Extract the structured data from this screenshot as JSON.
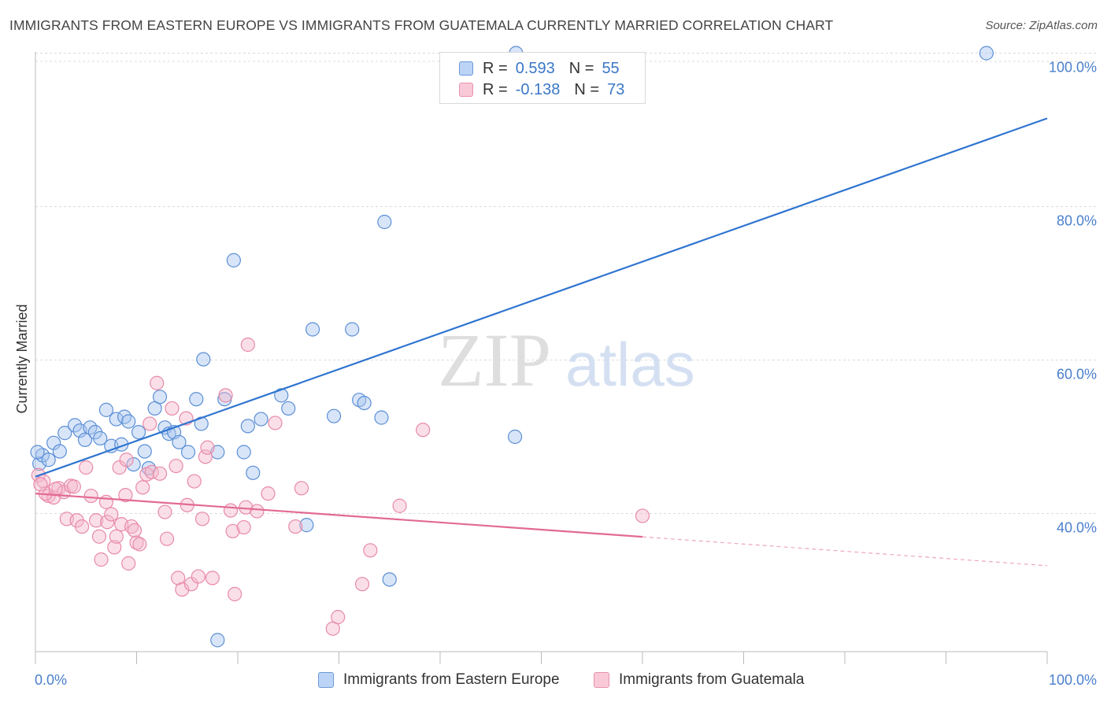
{
  "title": "IMMIGRANTS FROM EASTERN EUROPE VS IMMIGRANTS FROM GUATEMALA CURRENTLY MARRIED CORRELATION CHART",
  "source": "Source: ZipAtlas.com",
  "watermark": {
    "zip": "ZIP",
    "atlas": "atlas"
  },
  "colors": {
    "blue_fill": "#a9c6ef",
    "blue_stroke": "#5b8fd6",
    "blue_line": "#2f74d0",
    "pink_fill": "#f5b8cc",
    "pink_stroke": "#e88aa8",
    "pink_line": "#e26a93",
    "grid": "#dcdcdc",
    "axis_text": "#4a7fcc"
  },
  "legend": {
    "rows": [
      {
        "r_label": "R =",
        "r_value": "0.593",
        "n_label": "N =",
        "n_value": "55"
      },
      {
        "r_label": "R =",
        "r_value": "-0.138",
        "n_label": "N =",
        "n_value": "73"
      }
    ]
  },
  "bottom_legend": {
    "series1": "Immigrants from Eastern Europe",
    "series2": "Immigrants from Guatemala"
  },
  "chart_data": {
    "type": "scatter",
    "title": "IMMIGRANTS FROM EASTERN EUROPE VS IMMIGRANTS FROM GUATEMALA CURRENTLY MARRIED CORRELATION CHART",
    "xlabel": "",
    "ylabel": "Currently Married",
    "xlim": [
      0,
      100
    ],
    "ylim": [
      22,
      102
    ],
    "x_tick_labels": [
      "0.0%",
      "100.0%"
    ],
    "y_ticks": [
      40,
      60,
      80,
      100
    ],
    "y_tick_labels": [
      "40.0%",
      "60.0%",
      "80.0%",
      "100.0%"
    ],
    "grid": true,
    "series": [
      {
        "name": "Immigrants from Eastern Europe",
        "R": 0.593,
        "N": 55,
        "trend": {
          "x0": 0,
          "y0": 44.8,
          "x1": 100,
          "y1": 91.5,
          "solid_to": 100
        },
        "points": [
          [
            0.4,
            46.5
          ],
          [
            0.7,
            47.6
          ],
          [
            1.3,
            47.0
          ],
          [
            1.8,
            49.2
          ],
          [
            2.4,
            48.1
          ],
          [
            2.9,
            50.5
          ],
          [
            3.9,
            51.5
          ],
          [
            4.4,
            50.8
          ],
          [
            4.9,
            49.6
          ],
          [
            5.4,
            51.2
          ],
          [
            5.9,
            50.6
          ],
          [
            6.4,
            49.8
          ],
          [
            7.0,
            53.5
          ],
          [
            7.5,
            48.8
          ],
          [
            8.0,
            52.3
          ],
          [
            8.5,
            49.0
          ],
          [
            8.8,
            52.6
          ],
          [
            9.2,
            52.0
          ],
          [
            9.7,
            46.4
          ],
          [
            10.2,
            50.6
          ],
          [
            10.8,
            48.1
          ],
          [
            11.2,
            45.9
          ],
          [
            11.8,
            53.7
          ],
          [
            12.3,
            55.2
          ],
          [
            12.8,
            51.2
          ],
          [
            13.2,
            50.4
          ],
          [
            13.7,
            50.6
          ],
          [
            14.2,
            49.3
          ],
          [
            15.1,
            48.0
          ],
          [
            15.9,
            54.9
          ],
          [
            16.4,
            51.7
          ],
          [
            16.6,
            60.1
          ],
          [
            18.0,
            48.0
          ],
          [
            18.7,
            54.9
          ],
          [
            19.6,
            73.0
          ],
          [
            20.6,
            48.0
          ],
          [
            21.0,
            51.4
          ],
          [
            21.5,
            45.3
          ],
          [
            22.3,
            52.3
          ],
          [
            24.3,
            55.4
          ],
          [
            25.0,
            53.7
          ],
          [
            26.8,
            38.5
          ],
          [
            27.4,
            64.0
          ],
          [
            29.5,
            52.7
          ],
          [
            31.3,
            64.0
          ],
          [
            32.0,
            54.8
          ],
          [
            32.5,
            54.4
          ],
          [
            34.2,
            52.5
          ],
          [
            34.5,
            78.0
          ],
          [
            35.0,
            31.4
          ],
          [
            47.4,
            50.0
          ],
          [
            18.0,
            23.5
          ],
          [
            94.0,
            100.0
          ],
          [
            47.5,
            100.0
          ],
          [
            0.2,
            48.0
          ]
        ]
      },
      {
        "name": "Immigrants from Guatemala",
        "R": -0.138,
        "N": 73,
        "trend": {
          "x0": 0,
          "y0": 42.6,
          "x1": 100,
          "y1": 33.2,
          "solid_to": 60
        },
        "points": [
          [
            0.3,
            45.0
          ],
          [
            0.8,
            44.2
          ],
          [
            1.3,
            42.3
          ],
          [
            1.8,
            42.1
          ],
          [
            2.3,
            43.3
          ],
          [
            2.8,
            42.8
          ],
          [
            3.1,
            39.3
          ],
          [
            3.5,
            43.6
          ],
          [
            4.1,
            39.1
          ],
          [
            4.6,
            38.3
          ],
          [
            5.0,
            46.0
          ],
          [
            5.5,
            42.3
          ],
          [
            6.0,
            39.1
          ],
          [
            6.3,
            37.0
          ],
          [
            6.5,
            34.0
          ],
          [
            7.0,
            41.5
          ],
          [
            7.1,
            38.9
          ],
          [
            7.5,
            39.9
          ],
          [
            7.8,
            35.6
          ],
          [
            8.0,
            37.0
          ],
          [
            8.3,
            46.0
          ],
          [
            8.5,
            38.6
          ],
          [
            9.0,
            47.0
          ],
          [
            9.2,
            33.5
          ],
          [
            9.5,
            38.3
          ],
          [
            9.8,
            37.8
          ],
          [
            10.0,
            36.2
          ],
          [
            10.3,
            36.0
          ],
          [
            10.6,
            43.4
          ],
          [
            11.0,
            45.1
          ],
          [
            11.3,
            51.7
          ],
          [
            11.5,
            45.4
          ],
          [
            12.0,
            57.0
          ],
          [
            12.8,
            40.2
          ],
          [
            13.0,
            36.7
          ],
          [
            13.5,
            53.7
          ],
          [
            13.9,
            46.2
          ],
          [
            14.1,
            31.6
          ],
          [
            14.5,
            30.1
          ],
          [
            14.9,
            52.4
          ],
          [
            15.0,
            41.1
          ],
          [
            15.4,
            30.8
          ],
          [
            16.1,
            31.8
          ],
          [
            16.5,
            39.3
          ],
          [
            16.8,
            47.4
          ],
          [
            17.0,
            48.6
          ],
          [
            17.5,
            31.6
          ],
          [
            18.8,
            55.4
          ],
          [
            19.3,
            40.4
          ],
          [
            19.5,
            37.7
          ],
          [
            19.7,
            29.5
          ],
          [
            20.6,
            38.2
          ],
          [
            20.8,
            40.8
          ],
          [
            21.0,
            62.0
          ],
          [
            21.9,
            40.3
          ],
          [
            23.0,
            42.6
          ],
          [
            23.7,
            51.8
          ],
          [
            25.7,
            38.3
          ],
          [
            26.3,
            43.3
          ],
          [
            29.4,
            25.0
          ],
          [
            29.9,
            26.5
          ],
          [
            32.3,
            30.8
          ],
          [
            33.1,
            35.2
          ],
          [
            36.0,
            41.0
          ],
          [
            38.3,
            50.9
          ],
          [
            60.0,
            39.7
          ],
          [
            12.3,
            45.2
          ],
          [
            3.8,
            43.5
          ],
          [
            1.0,
            42.6
          ],
          [
            0.5,
            43.8
          ],
          [
            2.0,
            43.2
          ],
          [
            8.9,
            42.4
          ],
          [
            15.7,
            44.2
          ]
        ]
      }
    ]
  }
}
